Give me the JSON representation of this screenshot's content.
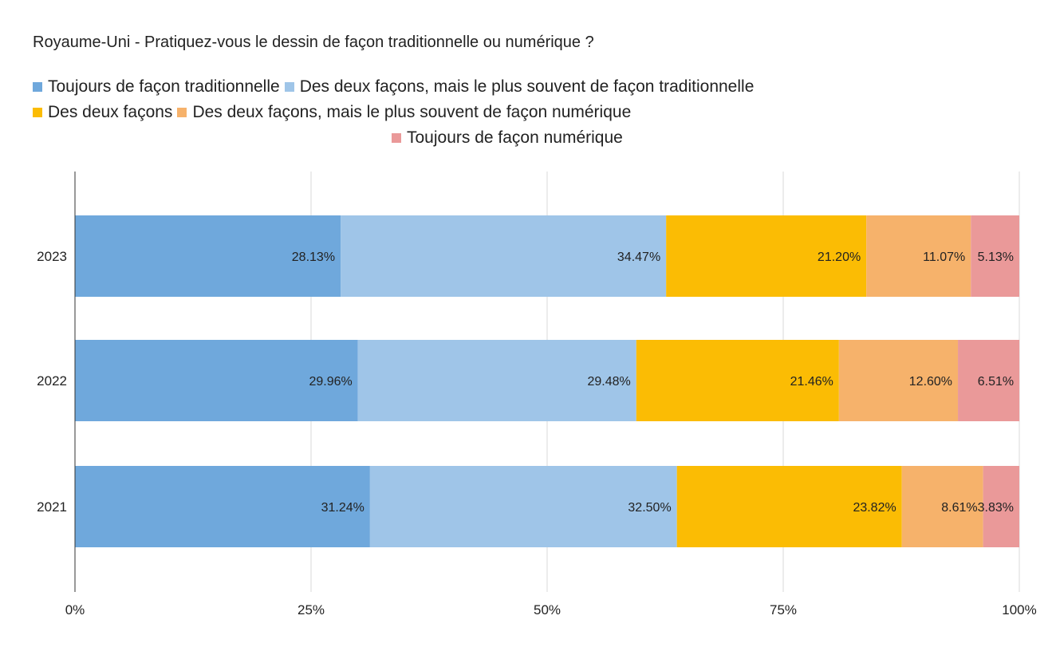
{
  "chart_data": {
    "type": "bar",
    "orientation": "horizontal",
    "stacked": "percent",
    "title": "Royaume-Uni - Pratiquez-vous le dessin de façon traditionnelle ou numérique ?",
    "categories": [
      "2023",
      "2022",
      "2021"
    ],
    "series": [
      {
        "name": "Toujours de façon traditionnelle",
        "color": "#6fa8dc",
        "values": [
          28.13,
          29.96,
          31.24
        ],
        "labels": [
          "28.13%",
          "29.96%",
          "31.24%"
        ]
      },
      {
        "name": "Des deux façons, mais le plus souvent de façon traditionnelle",
        "color": "#9fc5e8",
        "values": [
          34.47,
          29.48,
          32.5
        ],
        "labels": [
          "34.47%",
          "29.48%",
          "32.50%"
        ]
      },
      {
        "name": "Des deux façons",
        "color": "#fbbc04",
        "values": [
          21.2,
          21.46,
          23.82
        ],
        "labels": [
          "21.20%",
          "21.46%",
          "23.82%"
        ]
      },
      {
        "name": "Des deux façons, mais le plus souvent de façon numérique",
        "color": "#f6b26b",
        "values": [
          11.07,
          12.6,
          8.61
        ],
        "labels": [
          "11.07%",
          "12.60%",
          "8.61%"
        ]
      },
      {
        "name": "Toujours de façon numérique",
        "color": "#ea9999",
        "values": [
          5.13,
          6.51,
          3.83
        ],
        "labels": [
          "5.13%",
          "6.51%",
          "3.83%"
        ]
      }
    ],
    "x_ticks": [
      "0%",
      "25%",
      "50%",
      "75%",
      "100%"
    ],
    "xlim": [
      0,
      100
    ],
    "grid": true,
    "legend_position": "top"
  }
}
